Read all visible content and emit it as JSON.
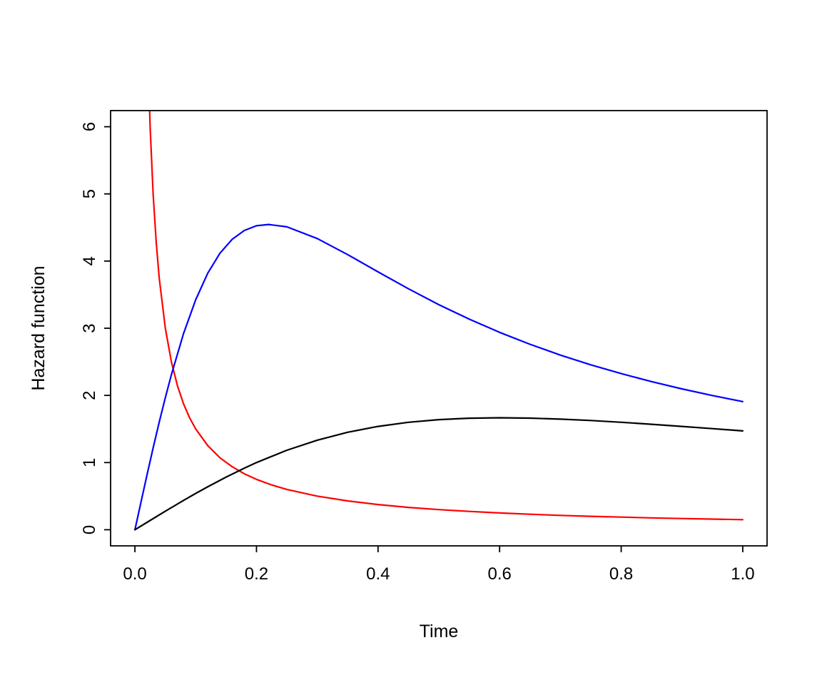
{
  "page": {
    "background": "#ffffff",
    "axis_color": "#000000"
  },
  "chart_data": {
    "type": "line",
    "title": "",
    "xlabel": "Time",
    "ylabel": "Hazard function",
    "xlim": [
      -0.04,
      1.04
    ],
    "ylim": [
      -0.24,
      6.24
    ],
    "xticks": [
      0.0,
      0.2,
      0.4,
      0.6,
      0.8,
      1.0
    ],
    "xtick_labels": [
      "0.0",
      "0.2",
      "0.4",
      "0.6",
      "0.8",
      "1.0"
    ],
    "yticks": [
      0,
      1,
      2,
      3,
      4,
      5,
      6
    ],
    "ytick_labels": [
      "0",
      "1",
      "2",
      "3",
      "4",
      "5",
      "6"
    ],
    "grid": false,
    "legend": null,
    "series": [
      {
        "name": "red-decreasing-hazard",
        "color": "#ff0000",
        "x": [
          0.02,
          0.025,
          0.03,
          0.035,
          0.04,
          0.05,
          0.06,
          0.07,
          0.08,
          0.09,
          0.1,
          0.12,
          0.14,
          0.16,
          0.18,
          0.2,
          0.225,
          0.25,
          0.3,
          0.35,
          0.4,
          0.45,
          0.5,
          0.55,
          0.6,
          0.65,
          0.7,
          0.75,
          0.8,
          0.85,
          0.9,
          0.95,
          1.0
        ],
        "y": [
          7.5,
          6.0,
          5.0,
          4.286,
          3.75,
          3.0,
          2.5,
          2.143,
          1.875,
          1.667,
          1.5,
          1.25,
          1.071,
          0.938,
          0.833,
          0.75,
          0.667,
          0.6,
          0.5,
          0.429,
          0.375,
          0.333,
          0.3,
          0.273,
          0.25,
          0.231,
          0.214,
          0.2,
          0.188,
          0.176,
          0.167,
          0.158,
          0.15
        ]
      },
      {
        "name": "blue-hump-hazard",
        "color": "#0000ff",
        "x": [
          0,
          0.01,
          0.02,
          0.03,
          0.04,
          0.05,
          0.06,
          0.08,
          0.1,
          0.12,
          0.14,
          0.16,
          0.18,
          0.2,
          0.22,
          0.25,
          0.3,
          0.35,
          0.4,
          0.45,
          0.5,
          0.55,
          0.6,
          0.65,
          0.7,
          0.75,
          0.8,
          0.85,
          0.9,
          0.95,
          1.0
        ],
        "y": [
          0,
          0.412,
          0.82,
          1.217,
          1.6,
          1.965,
          2.308,
          2.92,
          3.425,
          3.822,
          4.118,
          4.324,
          4.455,
          4.525,
          4.545,
          4.509,
          4.335,
          4.096,
          3.839,
          3.587,
          3.351,
          3.135,
          2.938,
          2.761,
          2.6,
          2.455,
          2.324,
          2.205,
          2.097,
          1.998,
          1.908
        ]
      },
      {
        "name": "black-hump-hazard",
        "color": "#000000",
        "x": [
          0,
          0.02,
          0.05,
          0.08,
          0.1,
          0.12,
          0.15,
          0.18,
          0.2,
          0.25,
          0.3,
          0.35,
          0.4,
          0.45,
          0.5,
          0.55,
          0.6,
          0.65,
          0.7,
          0.75,
          0.8,
          0.85,
          0.9,
          0.95,
          1.0
        ],
        "y": [
          0,
          0.111,
          0.276,
          0.437,
          0.541,
          0.641,
          0.784,
          0.917,
          1.0,
          1.183,
          1.333,
          1.451,
          1.538,
          1.6,
          1.639,
          1.66,
          1.667,
          1.661,
          1.647,
          1.626,
          1.6,
          1.57,
          1.538,
          1.505,
          1.471
        ]
      }
    ]
  }
}
